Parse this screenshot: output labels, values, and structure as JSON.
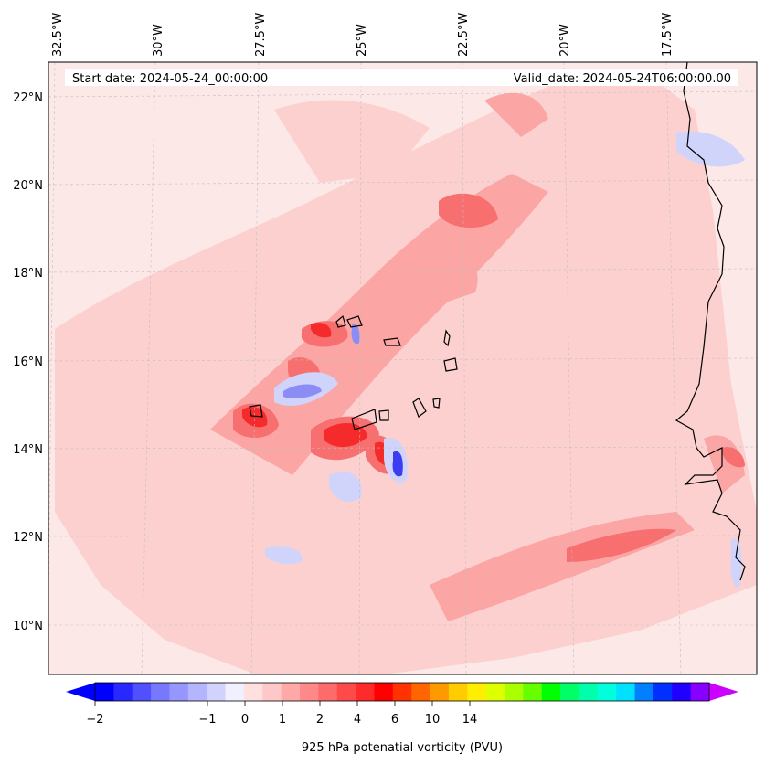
{
  "map": {
    "start_label": "Start date: 2024-05-24_00:00:00",
    "valid_label": "Valid_date: 2024-05-24T06:00:00.00",
    "lon_labels": [
      "32.5°W",
      "30°W",
      "27.5°W",
      "25°W",
      "22.5°W",
      "20°W",
      "17.5°W"
    ],
    "lat_labels": [
      "22°N",
      "20°N",
      "18°N",
      "16°N",
      "14°N",
      "12°N",
      "10°N"
    ],
    "field_colors": {
      "background": "#fde8e8",
      "light": "#fdd0d0",
      "medium": "#fba5a5",
      "strong": "#f76f6f",
      "max": "#f52a2a",
      "negative_light": "#d0d4fb",
      "negative": "#8c8cf5",
      "negative_strong": "#3c3cf0"
    }
  },
  "colorbar": {
    "title": "925 hPa potenatial vorticity (PVU)",
    "ticks": [
      "−2",
      "−1",
      "0",
      "1",
      "2",
      "4",
      "6",
      "10",
      "14"
    ],
    "colors": [
      "#0000ff",
      "#2828ff",
      "#5050ff",
      "#7878ff",
      "#9696ff",
      "#b4b4ff",
      "#d2d2ff",
      "#f0f0ff",
      "#ffe0e0",
      "#ffc8c8",
      "#ffa8a8",
      "#ff8888",
      "#ff6a6a",
      "#ff4a4a",
      "#ff2a2a",
      "#ff0000",
      "#ff3300",
      "#ff6600",
      "#ff9900",
      "#ffcc00",
      "#ffee00",
      "#ddff00",
      "#aaff00",
      "#66ff00",
      "#00ff00",
      "#00ff66",
      "#00ffaa",
      "#00ffdd",
      "#00e0ff",
      "#0080ff",
      "#0030ff",
      "#2200ff",
      "#8800ff"
    ],
    "under_color": "#0000ff",
    "over_color": "#cc00ff"
  }
}
